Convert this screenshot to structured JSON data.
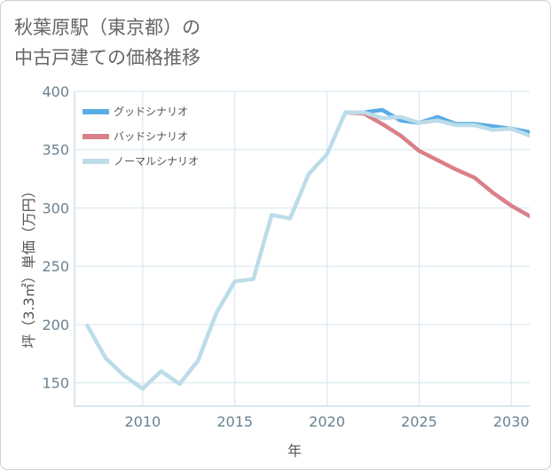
{
  "title": {
    "line1": "秋葉原駅（東京都）の",
    "line2": "中古戸建ての価格推移"
  },
  "chart_data": {
    "type": "line",
    "xlabel": "年",
    "ylabel": "坪（3.3㎡）単価（万円）",
    "xlim": [
      2006.3,
      2031
    ],
    "ylim": [
      130,
      400
    ],
    "xticks": [
      2010,
      2015,
      2020,
      2025,
      2030
    ],
    "yticks": [
      150,
      200,
      250,
      300,
      350,
      400
    ],
    "xtick_labels": [
      "2010",
      "2015",
      "2020",
      "2025",
      "2030"
    ],
    "ytick_labels": [
      "150",
      "200",
      "250",
      "300",
      "350",
      "400"
    ],
    "grid": true,
    "legend_position": "top-left",
    "series": [
      {
        "name": "グッドシナリオ",
        "color": "#5aace6",
        "x": [
          2021,
          2022,
          2023,
          2024,
          2025,
          2026,
          2027,
          2028,
          2029,
          2030,
          2031
        ],
        "y": [
          382,
          382,
          384,
          375,
          373,
          378,
          372,
          372,
          370,
          368,
          365
        ]
      },
      {
        "name": "バッドシナリオ",
        "color": "#d9808a",
        "x": [
          2021,
          2022,
          2023,
          2024,
          2025,
          2026,
          2027,
          2028,
          2029,
          2030,
          2031
        ],
        "y": [
          382,
          381,
          372,
          362,
          349,
          341,
          333,
          326,
          313,
          302,
          293
        ]
      },
      {
        "name": "ノーマルシナリオ",
        "color": "#bcdce9",
        "x": [
          2007,
          2008,
          2009,
          2010,
          2011,
          2012,
          2013,
          2014,
          2015,
          2016,
          2017,
          2018,
          2019,
          2020,
          2021,
          2022,
          2023,
          2024,
          2025,
          2026,
          2027,
          2028,
          2029,
          2030,
          2031
        ],
        "y": [
          199,
          171,
          156,
          145,
          160,
          149,
          169,
          210,
          237,
          239,
          294,
          291,
          329,
          346,
          382,
          382,
          377,
          378,
          373,
          375,
          371,
          371,
          367,
          368,
          362
        ]
      }
    ]
  }
}
